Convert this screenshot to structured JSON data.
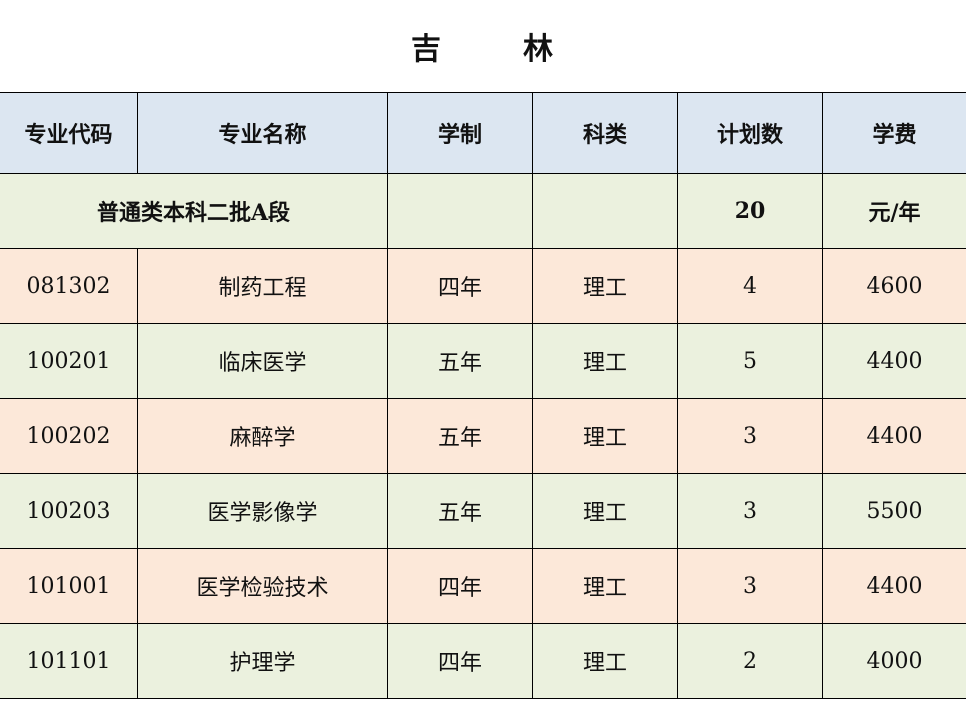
{
  "title": [
    "吉",
    "林"
  ],
  "headers": [
    "专业代码",
    "专业名称",
    "学制",
    "科类",
    "计划数",
    "学费"
  ],
  "batch": {
    "label": "普通类本科二批A段",
    "plan": "20",
    "fee_unit": "元/年"
  },
  "rows": [
    {
      "code": "081302",
      "name": "制药工程",
      "years": "四年",
      "type": "理工",
      "plan": "4",
      "fee": "4600"
    },
    {
      "code": "100201",
      "name": "临床医学",
      "years": "五年",
      "type": "理工",
      "plan": "5",
      "fee": "4400"
    },
    {
      "code": "100202",
      "name": "麻醉学",
      "years": "五年",
      "type": "理工",
      "plan": "3",
      "fee": "4400"
    },
    {
      "code": "100203",
      "name": "医学影像学",
      "years": "五年",
      "type": "理工",
      "plan": "3",
      "fee": "5500"
    },
    {
      "code": "101001",
      "name": "医学检验技术",
      "years": "四年",
      "type": "理工",
      "plan": "3",
      "fee": "4400"
    },
    {
      "code": "101101",
      "name": "护理学",
      "years": "四年",
      "type": "理工",
      "plan": "2",
      "fee": "4000"
    }
  ],
  "colors": {
    "header": "#dce6f1",
    "green": "#ebf1de",
    "peach": "#fce8d9"
  }
}
